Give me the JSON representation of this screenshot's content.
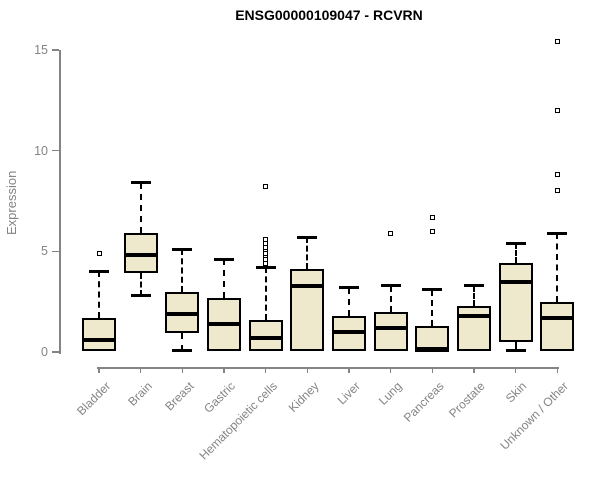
{
  "chart_data": {
    "type": "boxplot",
    "title": "ENSG00000109047 - RCVRN",
    "ylabel": "Expression",
    "xlabel": "",
    "ylim": [
      0,
      15
    ],
    "yticks": [
      0,
      5,
      10,
      15
    ],
    "grid": false,
    "legend": null,
    "colors": {
      "box_fill": "#EEE8CD",
      "box_border": "#000000",
      "axis": "#848484",
      "tick_label": "#848484",
      "title": "#000000"
    },
    "categories": [
      "Bladder",
      "Brain",
      "Breast",
      "Gastric",
      "Hematopoietic cells",
      "Kidney",
      "Liver",
      "Lung",
      "Pancreas",
      "Prostate",
      "Skin",
      "Unknown / Other"
    ],
    "series": [
      {
        "category": "Bladder",
        "whisker_low": 0.05,
        "q1": 0.05,
        "median": 0.6,
        "q3": 1.7,
        "whisker_high": 4.0,
        "outliers": [
          4.9
        ]
      },
      {
        "category": "Brain",
        "whisker_low": 2.8,
        "q1": 3.9,
        "median": 4.8,
        "q3": 5.9,
        "whisker_high": 8.4,
        "outliers": []
      },
      {
        "category": "Breast",
        "whisker_low": 0.05,
        "q1": 0.95,
        "median": 1.9,
        "q3": 3.0,
        "whisker_high": 5.1,
        "outliers": []
      },
      {
        "category": "Gastric",
        "whisker_low": 0.05,
        "q1": 0.05,
        "median": 1.4,
        "q3": 2.7,
        "whisker_high": 4.6,
        "outliers": []
      },
      {
        "category": "Hematopoietic cells",
        "whisker_low": 0.05,
        "q1": 0.05,
        "median": 0.7,
        "q3": 1.6,
        "whisker_high": 4.2,
        "outliers": [
          4.4,
          4.6,
          4.8,
          4.9,
          5.1,
          5.2,
          5.4,
          5.6,
          8.2
        ]
      },
      {
        "category": "Kidney",
        "whisker_low": 0.05,
        "q1": 0.05,
        "median": 3.3,
        "q3": 4.1,
        "whisker_high": 5.7,
        "outliers": []
      },
      {
        "category": "Liver",
        "whisker_low": 0.05,
        "q1": 0.05,
        "median": 1.0,
        "q3": 1.8,
        "whisker_high": 3.2,
        "outliers": []
      },
      {
        "category": "Lung",
        "whisker_low": 0.05,
        "q1": 0.05,
        "median": 1.2,
        "q3": 2.0,
        "whisker_high": 3.3,
        "outliers": [
          5.9
        ]
      },
      {
        "category": "Pancreas",
        "whisker_low": 0.0,
        "q1": 0.0,
        "median": 0.15,
        "q3": 1.3,
        "whisker_high": 3.1,
        "outliers": [
          6.0,
          6.7
        ]
      },
      {
        "category": "Prostate",
        "whisker_low": 0.05,
        "q1": 0.05,
        "median": 1.8,
        "q3": 2.3,
        "whisker_high": 3.3,
        "outliers": []
      },
      {
        "category": "Skin",
        "whisker_low": 0.05,
        "q1": 0.5,
        "median": 3.5,
        "q3": 4.4,
        "whisker_high": 5.4,
        "outliers": []
      },
      {
        "category": "Unknown / Other",
        "whisker_low": 0.05,
        "q1": 0.05,
        "median": 1.7,
        "q3": 2.5,
        "whisker_high": 5.9,
        "outliers": [
          8.0,
          8.8,
          12.0,
          15.4
        ]
      }
    ]
  }
}
